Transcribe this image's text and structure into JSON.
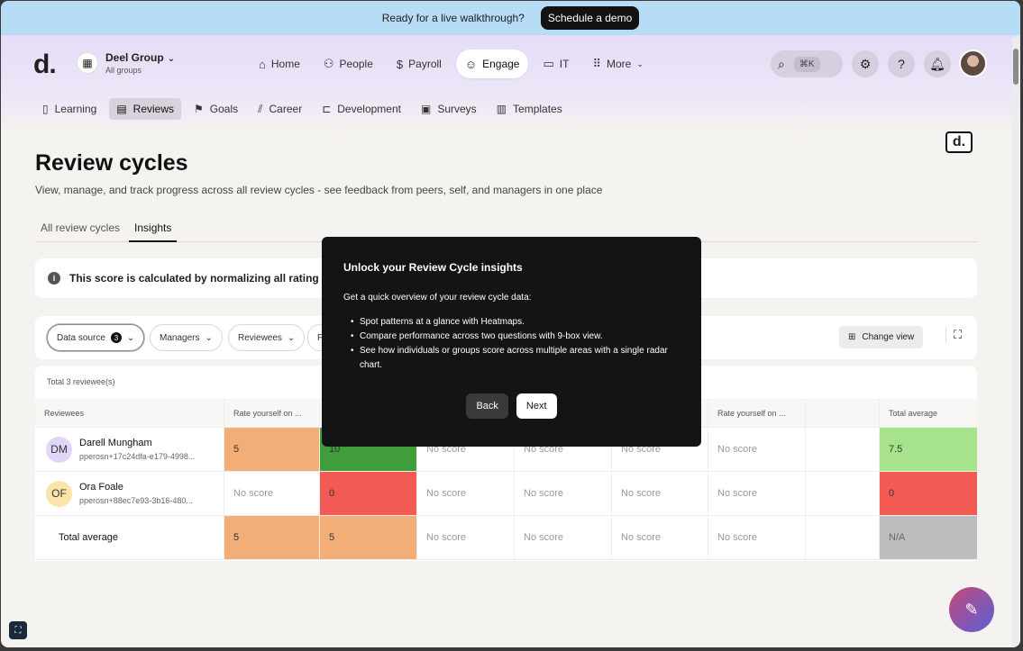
{
  "banner": {
    "text": "Ready for a live walkthrough?",
    "cta": "Schedule a demo"
  },
  "header": {
    "logo": "d.",
    "org": {
      "name": "Deel Group",
      "sub": "All groups"
    },
    "nav": [
      {
        "label": "Home",
        "icon": "home-icon"
      },
      {
        "label": "People",
        "icon": "people-icon"
      },
      {
        "label": "Payroll",
        "icon": "payroll-icon"
      },
      {
        "label": "Engage",
        "icon": "engage-icon",
        "active": true
      },
      {
        "label": "IT",
        "icon": "laptop-icon"
      },
      {
        "label": "More",
        "icon": "grid-icon"
      }
    ],
    "search_shortcut": "⌘K"
  },
  "subnav": [
    {
      "label": "Learning",
      "icon": "book-icon"
    },
    {
      "label": "Reviews",
      "icon": "chat-icon",
      "active": true
    },
    {
      "label": "Goals",
      "icon": "flag-icon"
    },
    {
      "label": "Career",
      "icon": "chart-icon"
    },
    {
      "label": "Development",
      "icon": "path-icon"
    },
    {
      "label": "Surveys",
      "icon": "clipboard-icon"
    },
    {
      "label": "Templates",
      "icon": "templates-icon"
    }
  ],
  "badge": "d.",
  "page": {
    "title": "Review cycles",
    "subtitle": "View, manage, and track progress across all review cycles - see feedback from peers, self, and managers in one place",
    "tabs": [
      "All review cycles",
      "Insights"
    ]
  },
  "info": {
    "text": "This score is calculated by normalizing all rating quest"
  },
  "filters": {
    "data_source": "Data source",
    "data_source_count": "3",
    "managers": "Managers",
    "reviewees": "Reviewees",
    "partial": "F",
    "change_view": "Change view"
  },
  "table": {
    "total": "Total 3 reviewee(s)",
    "headers": [
      "Reviewees",
      "Rate yourself on ...",
      "",
      "",
      "",
      "",
      "Rate yourself on ...",
      "",
      "Total average"
    ],
    "rows": [
      {
        "initials": "DM",
        "name": "Darell Mungham",
        "id": "pperosn+17c24dfa-e179-4998...",
        "cells": [
          "5",
          "10",
          "No score",
          "No score",
          "No score",
          "No score",
          "",
          "7.5"
        ]
      },
      {
        "initials": "OF",
        "name": "Ora Foale",
        "id": "pperosn+88ec7e93-3b16-480...",
        "cells": [
          "No score",
          "0",
          "No score",
          "No score",
          "No score",
          "No score",
          "",
          "0"
        ]
      }
    ],
    "total_row": {
      "label": "Total average",
      "cells": [
        "5",
        "5",
        "No score",
        "No score",
        "No score",
        "No score",
        "",
        "N/A"
      ]
    }
  },
  "modal": {
    "title": "Unlock your Review Cycle insights",
    "intro": "Get a quick overview of your review cycle data:",
    "bullets": [
      "Spot patterns at a glance with Heatmaps.",
      "Compare performance across two questions with 9-box view.",
      "See how individuals or groups score across multiple areas with a single radar chart."
    ],
    "back": "Back",
    "next": "Next"
  }
}
